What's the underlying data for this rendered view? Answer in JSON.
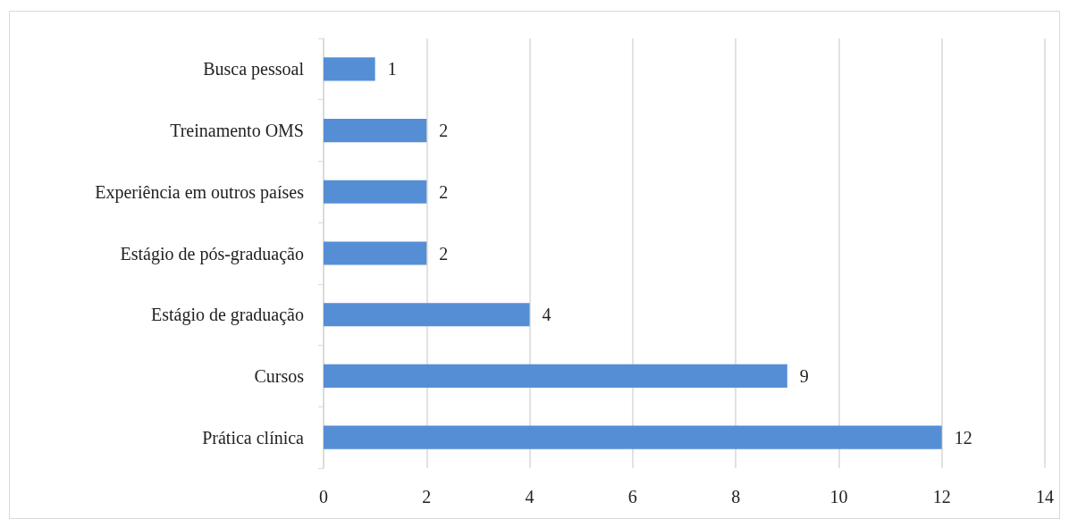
{
  "chart_data": {
    "type": "bar",
    "orientation": "horizontal",
    "categories": [
      "Busca pessoal",
      "Treinamento OMS",
      "Experiência em outros países",
      "Estágio de pós-graduação",
      "Estágio de graduação",
      "Cursos",
      "Prática clínica"
    ],
    "values": [
      1,
      2,
      2,
      2,
      4,
      9,
      12
    ],
    "color": "#558ed5",
    "xlim": [
      0,
      14
    ],
    "xticks": [
      0,
      2,
      4,
      6,
      8,
      10,
      12,
      14
    ],
    "grid": "x",
    "data_labels": true
  }
}
